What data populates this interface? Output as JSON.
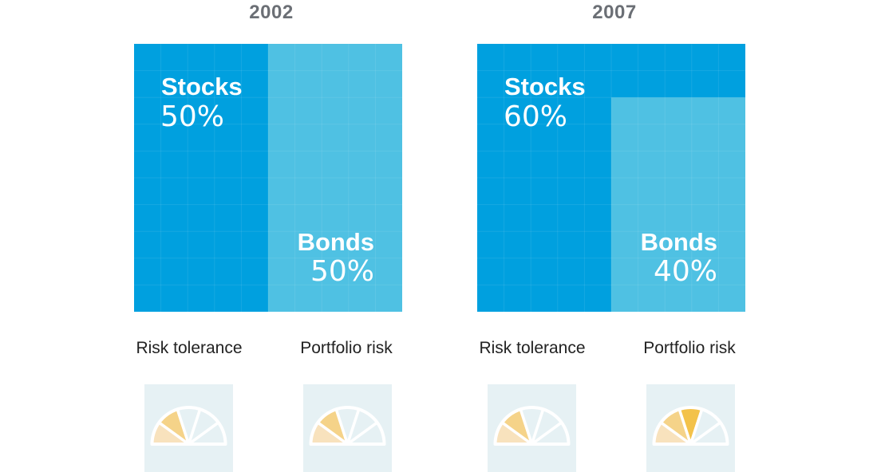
{
  "chart_data": [
    {
      "type": "treemap",
      "title": "2002",
      "series": [
        {
          "name": "Stocks",
          "label": "50%",
          "value": 50
        },
        {
          "name": "Bonds",
          "label": "50%",
          "value": 50
        }
      ],
      "gauges": [
        {
          "label": "Risk tolerance",
          "level": 2,
          "segments": 5
        },
        {
          "label": "Portfolio risk",
          "level": 2,
          "segments": 5
        }
      ]
    },
    {
      "type": "treemap",
      "title": "2007",
      "series": [
        {
          "name": "Stocks",
          "label": "60%",
          "value": 60
        },
        {
          "name": "Bonds",
          "label": "40%",
          "value": 40
        }
      ],
      "gauges": [
        {
          "label": "Risk tolerance",
          "level": 2,
          "segments": 5
        },
        {
          "label": "Portfolio risk",
          "level": 3,
          "segments": 5
        }
      ]
    }
  ],
  "colors": {
    "stocks": "#00a0df",
    "bonds": "#4fc1e3",
    "gauge_background": "#e6f1f4",
    "gauge_empty": "#e6f1f4",
    "gauge_fills": [
      "#f8e2bd",
      "#f5d389",
      "#f3c24a",
      "#f1b42e",
      "#eca323"
    ],
    "year_text": "#6b6f75"
  }
}
